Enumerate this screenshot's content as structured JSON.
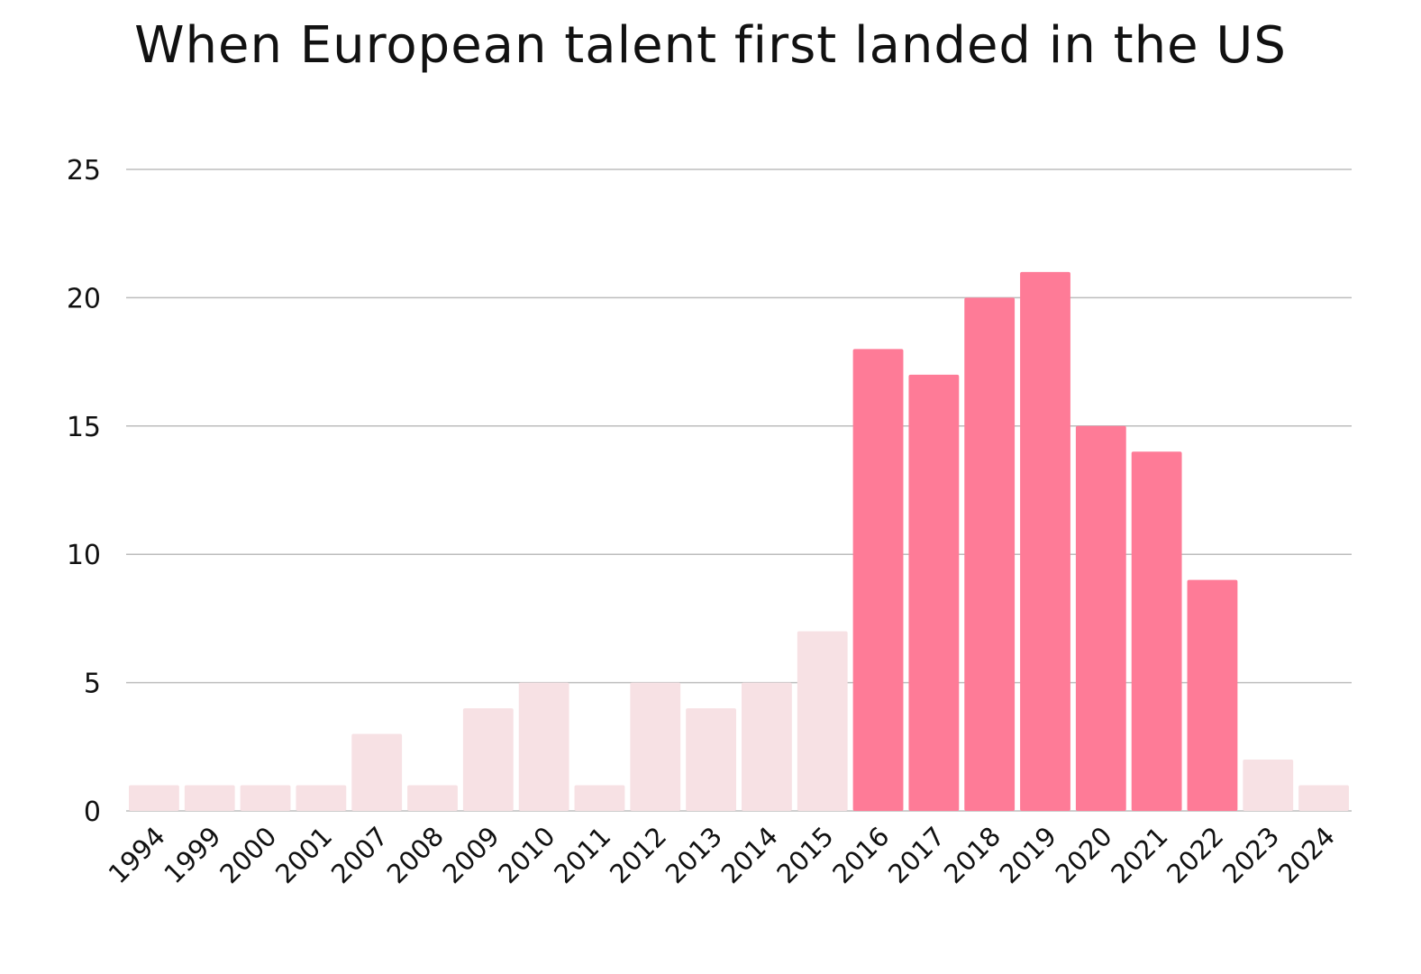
{
  "chart_data": {
    "type": "bar",
    "title": "When European talent first landed in the US",
    "xlabel": "",
    "ylabel": "",
    "ylim": [
      0,
      25
    ],
    "yticks": [
      0,
      5,
      10,
      15,
      20,
      25
    ],
    "grid": true,
    "categories": [
      "1994",
      "1999",
      "2000",
      "2001",
      "2007",
      "2008",
      "2009",
      "2010",
      "2011",
      "2012",
      "2013",
      "2014",
      "2015",
      "2016",
      "2017",
      "2018",
      "2019",
      "2020",
      "2021",
      "2022",
      "2023",
      "2024"
    ],
    "values": [
      1,
      1,
      1,
      1,
      3,
      1,
      4,
      5,
      1,
      5,
      4,
      5,
      7,
      18,
      17,
      20,
      21,
      15,
      14,
      9,
      2,
      1
    ],
    "highlighted": [
      false,
      false,
      false,
      false,
      false,
      false,
      false,
      false,
      false,
      false,
      false,
      false,
      false,
      true,
      true,
      true,
      true,
      true,
      true,
      true,
      false,
      false
    ],
    "colors": {
      "highlight": "#fe7b97",
      "muted": "#f7e1e4",
      "grid": "#bdbdbd",
      "text": "#111111"
    }
  }
}
